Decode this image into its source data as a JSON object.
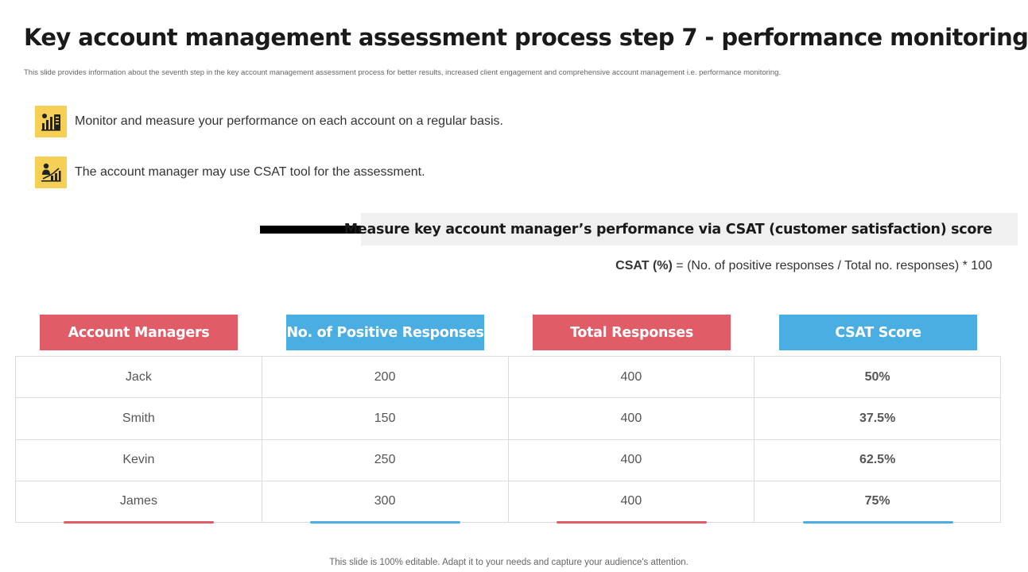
{
  "title": "Key account management assessment process step 7 - performance monitoring",
  "subtitle": "This slide provides information about the seventh step in the key account management assessment process for better results, increased client engagement and comprehensive account management i.e. performance monitoring.",
  "bullets": [
    {
      "icon": "performance-chart-icon",
      "text": "Monitor and measure your performance on each account on a regular basis."
    },
    {
      "icon": "manager-growth-icon",
      "text": "The account manager may use CSAT tool for the assessment."
    }
  ],
  "measure_heading": "Measure key account manager’s performance via CSAT (customer satisfaction) score",
  "formula": {
    "label": "CSAT (%)",
    "expression": " = (No. of positive responses / Total no. responses) * 100"
  },
  "table": {
    "headers": [
      "Account Managers",
      "No. of Positive Responses",
      "Total Responses",
      "CSAT Score"
    ],
    "rows": [
      [
        "Jack",
        "200",
        "400",
        "50%"
      ],
      [
        "Smith",
        "150",
        "400",
        "37.5%"
      ],
      [
        "Kevin",
        "250",
        "400",
        "62.5%"
      ],
      [
        "James",
        "300",
        "400",
        "75%"
      ]
    ]
  },
  "colors": {
    "accent_red": "#e05c66",
    "accent_blue": "#4aaee2",
    "icon_yellow": "#f6cf55"
  },
  "footer": "This slide is 100% editable. Adapt it to your needs and capture your audience's attention."
}
